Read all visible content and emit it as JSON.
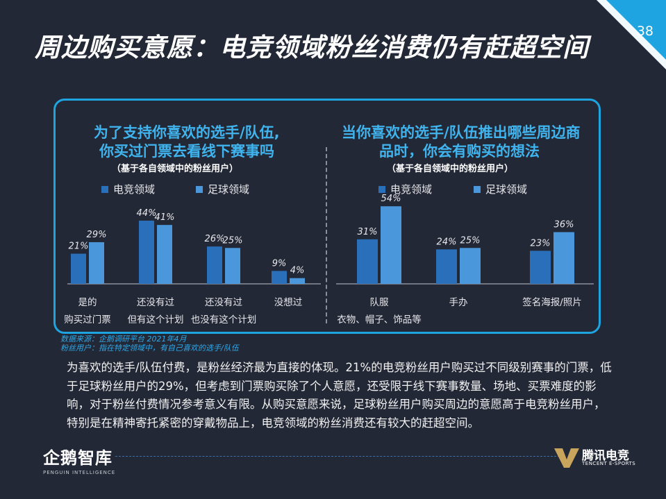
{
  "header": {
    "title": "周边购买意愿：电竞领域粉丝消费仍有赶超空间",
    "page_number": "38"
  },
  "panel": {
    "left": {
      "title_line1": "为了支持你喜欢的选手/队伍,",
      "title_line2": "你买过门票去看线下赛事吗",
      "subtitle": "（基于各自领域中的粉丝用户）"
    },
    "right": {
      "title_line1": "当你喜欢的选手/队伍推出哪些周边商",
      "title_line2": "品时，你会有购买的想法",
      "subtitle": "（基于各自领域中的粉丝用户）"
    }
  },
  "legend": {
    "esports": "电竞领域",
    "football": "足球领域"
  },
  "colors": {
    "esports": "#2a6fb9",
    "football": "#4a98db",
    "accent": "#1ea4e0"
  },
  "chart_data": [
    {
      "type": "bar",
      "title": "为了支持你喜欢的选手/队伍, 你买过门票去看线下赛事吗",
      "categories": [
        [
          "是的",
          "购买过门票"
        ],
        [
          "还没有过",
          "但有这个计划"
        ],
        [
          "还没有过",
          "也没有这个计划"
        ],
        [
          "没想过",
          ""
        ]
      ],
      "series": [
        {
          "name": "电竞领域",
          "values": [
            21,
            44,
            26,
            9
          ],
          "labels": [
            "21%",
            "44%",
            "26%",
            "9%"
          ]
        },
        {
          "name": "足球领域",
          "values": [
            29,
            41,
            25,
            4
          ],
          "labels": [
            "29%",
            "41%",
            "25%",
            "4%"
          ]
        }
      ],
      "ylim": [
        0,
        60
      ]
    },
    {
      "type": "bar",
      "title": "当你喜欢的选手/队伍推出哪些周边商品时，你会有购买的想法",
      "categories": [
        [
          "队服",
          "衣物、帽子、饰品等"
        ],
        [
          "手办",
          ""
        ],
        [
          "签名海报/照片",
          ""
        ]
      ],
      "series": [
        {
          "name": "电竞领域",
          "values": [
            31,
            24,
            23
          ],
          "labels": [
            "31%",
            "24%",
            "23%"
          ]
        },
        {
          "name": "足球领域",
          "values": [
            54,
            25,
            36
          ],
          "labels": [
            "54%",
            "25%",
            "36%"
          ]
        }
      ],
      "ylim": [
        0,
        60
      ]
    }
  ],
  "source": {
    "line1": "数据来源：企鹅调研平台 2021年4月",
    "line2": "粉丝用户：指在特定领域中，有自己喜欢的选手/队伍"
  },
  "paragraph": "为喜欢的选手/队伍付费，是粉丝经济最为直接的体现。21%的电竞粉丝用户购买过不同级别赛事的门票，低于足球粉丝用户的29%，但考虑到门票购买除了个人意愿，还受限于线下赛事数量、场地、买票难度的影响，对于粉丝付费情况参考意义有限。从购买意愿来说，足球粉丝用户购买周边的意愿高于电竞粉丝用户，特别是在精神寄托紧密的穿戴物品上，电竞领域的粉丝消费还有较大的赶超空间。",
  "footer": {
    "left_logo_cn": "企鹅智库",
    "left_logo_en": "PENGUIN INTELLIGENCE",
    "right_logo_cn": "腾讯电竞",
    "right_logo_en": "TENCENT E-SPORTS"
  }
}
